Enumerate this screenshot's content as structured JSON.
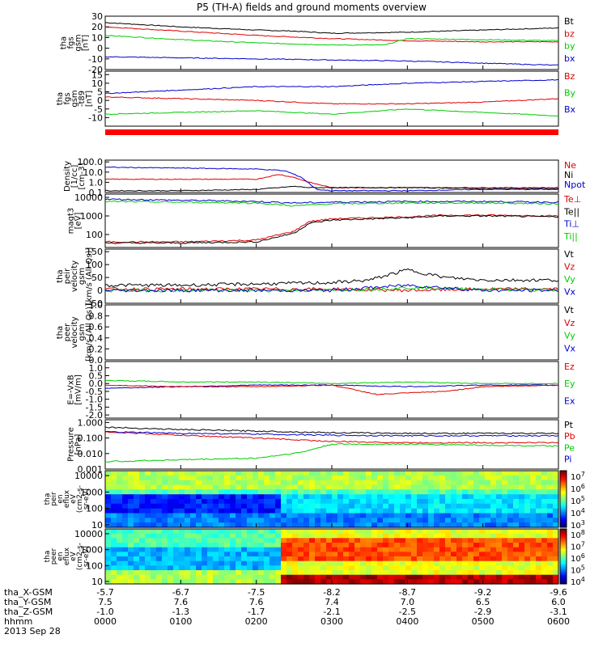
{
  "chart_data": {
    "type": "line",
    "title": "P5 (TH-A) fields and ground moments overview",
    "date_label": "2013 Sep 28",
    "x_axis": {
      "time_ticks": [
        "0000",
        "0100",
        "0200",
        "0300",
        "0400",
        "0500",
        "0600"
      ],
      "time_label": "hhmm",
      "position_rows": [
        {
          "label": "tha_X-GSM",
          "values": [
            "-5.7",
            "-6.7",
            "-7.5",
            "-8.2",
            "-8.7",
            "-9.2",
            "-9.6"
          ]
        },
        {
          "label": "tha_Y-GSM",
          "values": [
            "7.5",
            "7.6",
            "7.6",
            "7.4",
            "7.0",
            "6.5",
            "6.0"
          ]
        },
        {
          "label": "tha_Z-GSM",
          "values": [
            "-1.0",
            "-1.3",
            "-1.7",
            "-2.1",
            "-2.5",
            "-2.9",
            "-3.1"
          ]
        }
      ]
    },
    "panels": [
      {
        "id": "fgs-gsm",
        "ylabel": [
          "tha",
          "fgs",
          "gsm",
          "[nT]"
        ],
        "ylim": [
          -20,
          30
        ],
        "yticks": [
          "30",
          "20",
          "10",
          "0",
          "-10",
          "-20"
        ],
        "legend": [
          {
            "name": "Bt",
            "color": "#000000"
          },
          {
            "name": "bz",
            "color": "#dd0000"
          },
          {
            "name": "by",
            "color": "#00cc00"
          },
          {
            "name": "bx",
            "color": "#0000cc"
          }
        ],
        "series": [
          {
            "name": "Bt",
            "color": "#000000",
            "x": [
              0,
              1,
              2,
              2.5,
              3,
              4,
              5,
              6
            ],
            "y": [
              24,
              20,
              17,
              16,
              14,
              15,
              17,
              19
            ]
          },
          {
            "name": "bz",
            "color": "#dd0000",
            "x": [
              0,
              1,
              2,
              3,
              4,
              5,
              6
            ],
            "y": [
              20,
              16,
              12,
              9,
              7,
              6,
              6
            ]
          },
          {
            "name": "by",
            "color": "#00cc00",
            "x": [
              0,
              1,
              2,
              3,
              3.7,
              4,
              5,
              6
            ],
            "y": [
              12,
              8,
              5,
              3,
              3,
              9,
              8,
              7
            ]
          },
          {
            "name": "bx",
            "color": "#0000cc",
            "x": [
              0,
              1,
              2,
              3,
              4,
              5,
              6
            ],
            "y": [
              -8,
              -9,
              -10,
              -11,
              -12,
              -14,
              -16
            ]
          }
        ]
      },
      {
        "id": "fgs-gsm-t89",
        "ylabel": [
          "tha",
          "fgs",
          "gsm",
          "-t89",
          "[nT]"
        ],
        "ylim": [
          -15,
          17
        ],
        "yticks": [
          "15",
          "10",
          "5",
          "0",
          "-5",
          "-10"
        ],
        "legend": [
          {
            "name": "Bz",
            "color": "#dd0000"
          },
          {
            "name": "By",
            "color": "#00cc00"
          },
          {
            "name": "Bx",
            "color": "#0000cc"
          }
        ],
        "series": [
          {
            "name": "Bz",
            "color": "#dd0000",
            "x": [
              0,
              1,
              2,
              3,
              4,
              5,
              6
            ],
            "y": [
              2,
              1,
              0,
              -2,
              -2,
              -1,
              1
            ]
          },
          {
            "name": "By",
            "color": "#00cc00",
            "x": [
              0,
              1,
              2,
              3,
              4,
              5,
              6
            ],
            "y": [
              -8,
              -7,
              -6,
              -8,
              -5,
              -7,
              -9
            ]
          },
          {
            "name": "Bx",
            "color": "#0000cc",
            "x": [
              0,
              1,
              2,
              3,
              4,
              5,
              6
            ],
            "y": [
              4,
              6,
              8,
              8,
              10,
              11,
              12
            ]
          }
        ]
      },
      {
        "id": "density",
        "ylabel": [
          "Density",
          "[1/cc]",
          "[cm-3]"
        ],
        "scale": "log",
        "ylim": [
          0.1,
          150
        ],
        "yticks": [
          "100.0",
          "10.0",
          "1.0",
          "0.1"
        ],
        "legend": [
          {
            "name": "Ne",
            "color": "#dd0000"
          },
          {
            "name": "Ni",
            "color": "#000000"
          },
          {
            "name": "Npot",
            "color": "#0000cc"
          }
        ],
        "series": [
          {
            "name": "Ne",
            "color": "#dd0000",
            "x": [
              0,
              1,
              2,
              2.3,
              2.5,
              2.7,
              3,
              4,
              5,
              6
            ],
            "y": [
              2,
              2,
              2,
              6,
              3,
              1,
              0.3,
              0.3,
              0.3,
              0.3
            ]
          },
          {
            "name": "Ni",
            "color": "#000000",
            "x": [
              0,
              1,
              2,
              2.5,
              2.7,
              3,
              4,
              5,
              6
            ],
            "y": [
              0.15,
              0.15,
              0.2,
              0.4,
              0.3,
              0.3,
              0.3,
              0.25,
              0.25
            ]
          },
          {
            "name": "Npot",
            "color": "#0000cc",
            "x": [
              0,
              1,
              2,
              2.3,
              2.4,
              2.6,
              2.8,
              3,
              4,
              5,
              6
            ],
            "y": [
              30,
              25,
              20,
              15,
              12,
              3,
              0.2,
              0.15,
              0.15,
              0.2,
              0.2
            ]
          }
        ]
      },
      {
        "id": "temperature",
        "ylabel": [
          "magt3",
          "[eV]"
        ],
        "scale": "log",
        "ylim": [
          20,
          15000
        ],
        "yticks": [
          "10000",
          "1000",
          "100"
        ],
        "legend": [
          {
            "name": "Te⊥",
            "color": "#dd0000"
          },
          {
            "name": "Te||",
            "color": "#000000"
          },
          {
            "name": "Ti⊥",
            "color": "#0000cc"
          },
          {
            "name": "Ti||",
            "color": "#00cc00"
          }
        ],
        "series": [
          {
            "name": "Te⊥",
            "color": "#dd0000",
            "x": [
              0,
              1,
              2,
              2.5,
              2.7,
              3,
              4,
              4.5,
              5,
              6
            ],
            "y": [
              40,
              40,
              50,
              150,
              500,
              700,
              900,
              1100,
              1100,
              1000
            ]
          },
          {
            "name": "Te||",
            "color": "#000000",
            "x": [
              0,
              1,
              2,
              2.5,
              2.7,
              3,
              4,
              4.5,
              5,
              6
            ],
            "y": [
              35,
              35,
              40,
              120,
              400,
              600,
              800,
              1000,
              1000,
              900
            ]
          },
          {
            "name": "Ti⊥",
            "color": "#0000cc",
            "x": [
              0,
              1,
              2,
              2.5,
              3,
              4,
              5,
              6
            ],
            "y": [
              8000,
              7000,
              6000,
              5000,
              5500,
              6000,
              6000,
              5500
            ]
          },
          {
            "name": "Ti||",
            "color": "#00cc00",
            "x": [
              0,
              1,
              2,
              2.5,
              3,
              4,
              5,
              6
            ],
            "y": [
              6000,
              5500,
              5000,
              3500,
              4500,
              5000,
              5000,
              4500
            ]
          }
        ]
      },
      {
        "id": "peir-velocity",
        "ylabel": [
          "tha",
          "peir",
          "velocity",
          "gsm",
          "[km/s (All Qs)]"
        ],
        "ylim": [
          -50,
          160
        ],
        "yticks": [
          "150",
          "100",
          "50",
          "0",
          "-50"
        ],
        "legend": [
          {
            "name": "Vt",
            "color": "#000000"
          },
          {
            "name": "Vz",
            "color": "#dd0000"
          },
          {
            "name": "Vy",
            "color": "#00cc00"
          },
          {
            "name": "Vx",
            "color": "#0000cc"
          }
        ],
        "series": [
          {
            "name": "Vt",
            "color": "#000000",
            "x": [
              0,
              1,
              2,
              3,
              3.5,
              4,
              4.5,
              5,
              6
            ],
            "y": [
              20,
              20,
              25,
              30,
              40,
              80,
              50,
              40,
              40
            ]
          },
          {
            "name": "Vz",
            "color": "#dd0000",
            "x": [
              0,
              1,
              2,
              3,
              4,
              5,
              6
            ],
            "y": [
              5,
              5,
              5,
              5,
              0,
              5,
              5
            ]
          },
          {
            "name": "Vy",
            "color": "#00cc00",
            "x": [
              0,
              1,
              2,
              3,
              4,
              5,
              6
            ],
            "y": [
              0,
              0,
              0,
              0,
              10,
              5,
              0
            ]
          },
          {
            "name": "Vx",
            "color": "#0000cc",
            "x": [
              0,
              1,
              2,
              3,
              4,
              5,
              6
            ],
            "y": [
              0,
              0,
              0,
              0,
              20,
              0,
              0
            ]
          }
        ]
      },
      {
        "id": "peer-velocity",
        "ylabel": [
          "tha",
          "peer",
          "velocity",
          "gsm",
          "[km/s (All Qs)]"
        ],
        "ylim": [
          0,
          1.0
        ],
        "yticks": [
          "1.0",
          "0.8",
          "0.6",
          "0.4",
          "0.2",
          "0.0"
        ],
        "legend": [
          {
            "name": "Vt",
            "color": "#000000"
          },
          {
            "name": "Vz",
            "color": "#dd0000"
          },
          {
            "name": "Vy",
            "color": "#00cc00"
          },
          {
            "name": "Vx",
            "color": "#0000cc"
          }
        ],
        "series": []
      },
      {
        "id": "efield",
        "ylabel": [
          "E=-VxB",
          "[mV/m]"
        ],
        "ylim": [
          -2.2,
          1.4
        ],
        "yticks": [
          "1.0",
          "0.5",
          "0.0",
          "-0.5",
          "-1.0",
          "-1.5",
          "-2.0"
        ],
        "legend": [
          {
            "name": "Ez",
            "color": "#dd0000"
          },
          {
            "name": "Ey",
            "color": "#00cc00"
          },
          {
            "name": "Ex",
            "color": "#0000cc"
          }
        ],
        "series": [
          {
            "name": "Ey",
            "color": "#00cc00",
            "x": [
              0,
              1,
              2,
              3,
              4,
              5,
              6
            ],
            "y": [
              0.2,
              0.1,
              0.1,
              0.0,
              0.1,
              0.0,
              0.0
            ]
          },
          {
            "name": "Ex",
            "color": "#0000cc",
            "x": [
              0,
              1,
              2,
              3,
              4,
              5,
              6
            ],
            "y": [
              -0.3,
              -0.2,
              -0.1,
              -0.1,
              -0.2,
              -0.1,
              -0.1
            ]
          },
          {
            "name": "Ez",
            "color": "#dd0000",
            "x": [
              0,
              1,
              2,
              3,
              3.6,
              4,
              4.5,
              5,
              6
            ],
            "y": [
              -0.1,
              -0.2,
              -0.2,
              -0.1,
              -0.7,
              -0.6,
              -0.5,
              -0.2,
              -0.1
            ]
          }
        ]
      },
      {
        "id": "pressure",
        "ylabel": [
          "Pressure",
          "[nPa]"
        ],
        "scale": "log",
        "ylim": [
          0.001,
          1.5
        ],
        "yticks": [
          "1.000",
          "0.100",
          "0.010",
          "0.001"
        ],
        "legend": [
          {
            "name": "Pt",
            "color": "#000000"
          },
          {
            "name": "Pb",
            "color": "#dd0000"
          },
          {
            "name": "Pe",
            "color": "#00cc00"
          },
          {
            "name": "Pi",
            "color": "#0000cc"
          }
        ],
        "series": [
          {
            "name": "Pt",
            "color": "#000000",
            "x": [
              0,
              1,
              2,
              3,
              4,
              5,
              6
            ],
            "y": [
              0.5,
              0.35,
              0.28,
              0.22,
              0.2,
              0.2,
              0.2
            ]
          },
          {
            "name": "Pb",
            "color": "#dd0000",
            "x": [
              0,
              1,
              2,
              3,
              4,
              5,
              6
            ],
            "y": [
              0.25,
              0.15,
              0.1,
              0.06,
              0.05,
              0.05,
              0.05
            ]
          },
          {
            "name": "Pe",
            "color": "#00cc00",
            "x": [
              0,
              1,
              2,
              2.6,
              3,
              4,
              5,
              6
            ],
            "y": [
              0.003,
              0.004,
              0.005,
              0.012,
              0.04,
              0.04,
              0.035,
              0.03
            ]
          },
          {
            "name": "Pi",
            "color": "#0000cc",
            "x": [
              0,
              1,
              2,
              3,
              4,
              5,
              6
            ],
            "y": [
              0.25,
              0.2,
              0.18,
              0.15,
              0.14,
              0.14,
              0.14
            ]
          }
        ]
      }
    ],
    "spectrograms": [
      {
        "id": "peir-eflux",
        "ylabel": [
          "tha",
          "peir",
          "en",
          "eflux",
          "eV",
          "(cm2-s-",
          "sr-eV)"
        ],
        "scale": "log",
        "ylim": [
          7,
          20000
        ],
        "yticks": [
          "10000",
          "1000",
          "100",
          "10"
        ],
        "colorbar_ticks": [
          "10^7",
          "10^6",
          "10^5",
          "10^4",
          "10^3"
        ]
      },
      {
        "id": "peer-eflux",
        "ylabel": [
          "tha",
          "peer",
          "en",
          "eflux",
          "eV",
          "(cm2-s-",
          "sr-eV)"
        ],
        "scale": "log",
        "ylim": [
          7,
          20000
        ],
        "yticks": [
          "10000",
          "1000",
          "100",
          "10"
        ],
        "colorbar_ticks": [
          "10^8",
          "10^7",
          "10^6",
          "10^5",
          "10^4"
        ]
      }
    ]
  }
}
